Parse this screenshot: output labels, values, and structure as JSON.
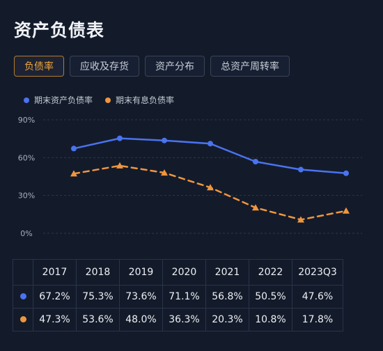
{
  "page": {
    "title": "资产负债表"
  },
  "tabs": [
    {
      "label": "负债率",
      "active": true
    },
    {
      "label": "应收及存货",
      "active": false
    },
    {
      "label": "资产分布",
      "active": false
    },
    {
      "label": "总资产周转率",
      "active": false
    }
  ],
  "colors": {
    "blue": "#4a73f0",
    "orange": "#f0963e",
    "grid": "#2d3749",
    "axis_text": "#a9b0bc"
  },
  "chart_data": {
    "type": "line",
    "x": [
      "2017",
      "2018",
      "2019",
      "2020",
      "2021",
      "2022",
      "2023Q3"
    ],
    "yticks": [
      "90%",
      "60%",
      "30%",
      "0%"
    ],
    "ylim": [
      0,
      90
    ],
    "grid": true,
    "legend": "top-left",
    "series": [
      {
        "name": "期末资产负债率",
        "values": [
          67.2,
          75.3,
          73.6,
          71.1,
          56.8,
          50.5,
          47.6
        ],
        "labels": [
          "67.2%",
          "75.3%",
          "73.6%",
          "71.1%",
          "56.8%",
          "50.5%",
          "47.6%"
        ],
        "style": "solid",
        "marker": "circle"
      },
      {
        "name": "期末有息负债率",
        "values": [
          47.3,
          53.6,
          48.0,
          36.3,
          20.3,
          10.8,
          17.8
        ],
        "labels": [
          "47.3%",
          "53.6%",
          "48.0%",
          "36.3%",
          "20.3%",
          "10.8%",
          "17.8%"
        ],
        "style": "dashed",
        "marker": "triangle"
      }
    ]
  }
}
